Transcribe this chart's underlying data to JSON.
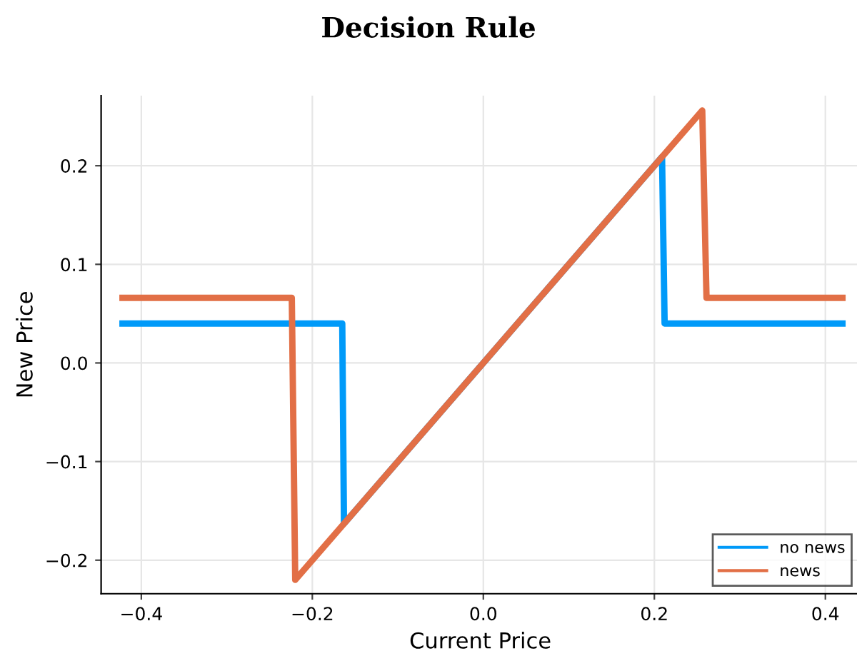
{
  "chart_data": {
    "type": "line",
    "title": "Decision Rule",
    "xlabel": "Current Price",
    "ylabel": "New Price",
    "series": [
      {
        "name": "no news",
        "color": "#009af9",
        "x": [
          -0.422,
          -0.165,
          -0.163,
          0.209,
          0.212,
          0.42
        ],
        "values": [
          0.04,
          0.04,
          -0.163,
          0.209,
          0.04,
          0.04
        ]
      },
      {
        "name": "news",
        "color": "#e26f46",
        "x": [
          -0.422,
          -0.224,
          -0.22,
          0.256,
          0.261,
          0.42
        ],
        "values": [
          0.066,
          0.066,
          -0.22,
          0.256,
          0.066,
          0.066
        ]
      }
    ],
    "xlim": [
      -0.447,
      0.44
    ],
    "ylim": [
      -0.234,
      0.271
    ],
    "xticks": [
      {
        "value": -0.4,
        "label": "−0.4"
      },
      {
        "value": -0.2,
        "label": "−0.2"
      },
      {
        "value": 0,
        "label": "0.0"
      },
      {
        "value": 0.2,
        "label": "0.2"
      },
      {
        "value": 0.4,
        "label": "0.4"
      }
    ],
    "yticks": [
      {
        "value": -0.2,
        "label": "−0.2"
      },
      {
        "value": -0.1,
        "label": "−0.1"
      },
      {
        "value": 0,
        "label": "0.0"
      },
      {
        "value": 0.1,
        "label": "0.1"
      },
      {
        "value": 0.2,
        "label": "0.2"
      }
    ],
    "grid": true,
    "legend": "bottom right",
    "line_style": "solid",
    "marker": "none"
  }
}
